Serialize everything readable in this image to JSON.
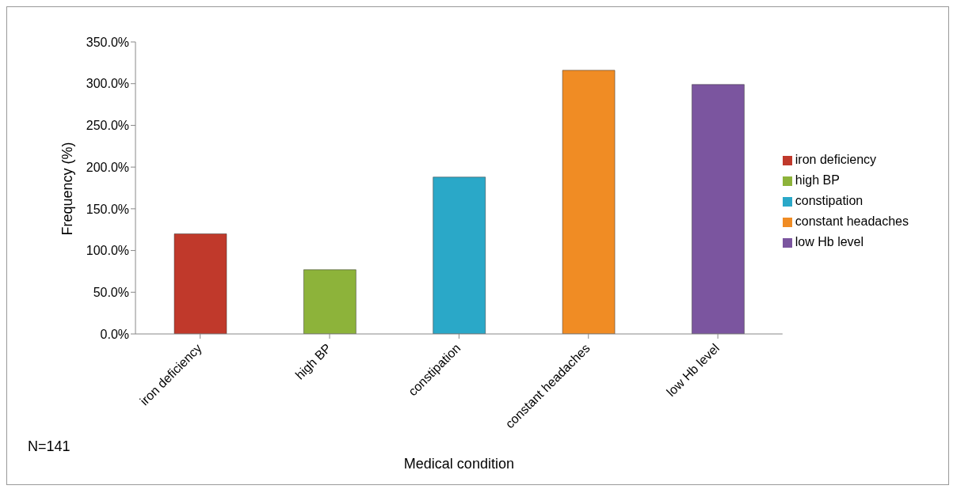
{
  "chart_data": {
    "type": "bar",
    "xlabel": "Medical condition",
    "ylabel": "Frequency (%)",
    "categories": [
      "iron deficiency",
      "high BP",
      "constipation",
      "constant headaches",
      "low Hb level"
    ],
    "stacked": true,
    "series": [
      {
        "name": "iron deficiency",
        "color": "#c0392b",
        "values": [
          120,
          null,
          null,
          null,
          null
        ]
      },
      {
        "name": "high BP",
        "color": "#8db33a",
        "values": [
          null,
          77,
          null,
          null,
          null
        ]
      },
      {
        "name": "constipation",
        "color": "#2aa8c8",
        "values": [
          null,
          null,
          188,
          null,
          null
        ]
      },
      {
        "name": "constant headaches",
        "color": "#f08c24",
        "values": [
          null,
          null,
          null,
          316,
          null
        ]
      },
      {
        "name": "low Hb level",
        "color": "#7b559f",
        "values": [
          null,
          null,
          null,
          null,
          299
        ]
      }
    ],
    "ylim": [
      0,
      350
    ],
    "yticks": [
      {
        "value": 0,
        "label": "0.0%"
      },
      {
        "value": 50,
        "label": "50.0%"
      },
      {
        "value": 100,
        "label": "100.0%"
      },
      {
        "value": 150,
        "label": "150.0%"
      },
      {
        "value": 200,
        "label": "200.0%"
      },
      {
        "value": 250,
        "label": "250.0%"
      },
      {
        "value": 300,
        "label": "300.0%"
      },
      {
        "value": 350,
        "label": "350.0%"
      }
    ],
    "grid": false,
    "legend": "right",
    "annotations": [
      "N=141"
    ]
  }
}
